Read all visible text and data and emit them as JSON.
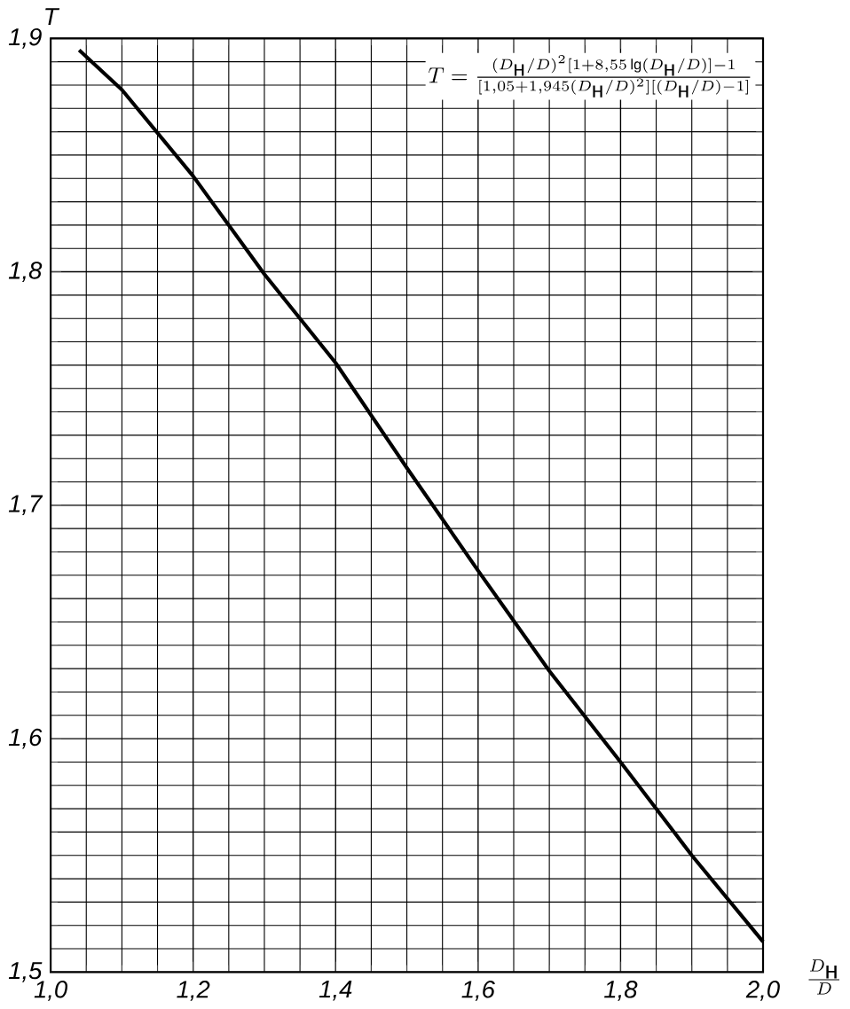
{
  "chart_data": {
    "type": "line",
    "x": [
      1.04,
      1.1,
      1.2,
      1.3,
      1.4,
      1.5,
      1.6,
      1.7,
      1.8,
      1.9,
      2.0
    ],
    "values": [
      1.895,
      1.878,
      1.841,
      1.799,
      1.761,
      1.716,
      1.672,
      1.629,
      1.59,
      1.55,
      1.513
    ],
    "color": "#000000",
    "xlim": [
      1.0,
      2.0
    ],
    "ylim": [
      1.5,
      1.9
    ],
    "xticks": [
      {
        "value": 1.0,
        "label": "1,0"
      },
      {
        "value": 1.2,
        "label": "1,2"
      },
      {
        "value": 1.4,
        "label": "1,4"
      },
      {
        "value": 1.6,
        "label": "1,6"
      },
      {
        "value": 1.8,
        "label": "1,8"
      },
      {
        "value": 2.0,
        "label": "2,0"
      }
    ],
    "yticks": [
      {
        "value": 1.5,
        "label": "1,5"
      },
      {
        "value": 1.6,
        "label": "1,6"
      },
      {
        "value": 1.7,
        "label": "1,7"
      },
      {
        "value": 1.8,
        "label": "1,8"
      },
      {
        "value": 1.9,
        "label": "1,9"
      }
    ],
    "xlabel": "\\frac{D_{\\mbox{н}}}{D}",
    "ylabel": "T",
    "annotations": [
      "T=\\frac{(D_{\\mbox{н}}/D)^2[1+8{,}55\\,\\mathrm{lg}(D_{\\mbox{н}}/D)]-1}{[1{,}05+1{,}945(D_{\\mbox{н}}/D)^2][(D_{\\mbox{н}}/D)-1]}"
    ],
    "grid": true,
    "marker": "none",
    "line_style": "solid"
  }
}
